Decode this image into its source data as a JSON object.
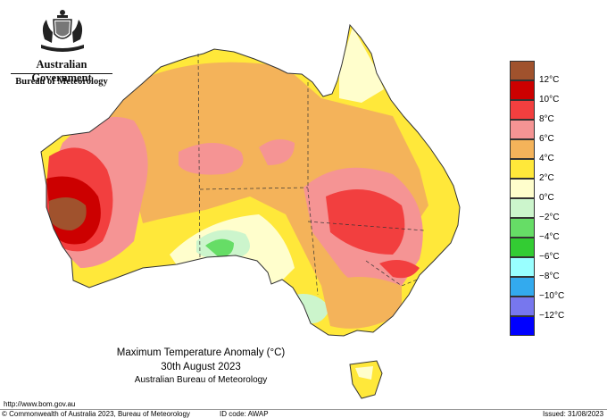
{
  "header": {
    "gov_name": "Australian Government",
    "bureau_name": "Bureau of Meteorology",
    "crest_icon": "coat-of-arms-icon"
  },
  "map": {
    "title": "Maximum Temperature Anomaly (°C)",
    "date": "30th August 2023",
    "source": "Australian Bureau of Meteorology"
  },
  "legend": {
    "swatches": [
      {
        "color": "#a0522d",
        "label": "12°C"
      },
      {
        "color": "#cc0000",
        "label": "10°C"
      },
      {
        "color": "#f23f3f",
        "label": "8°C"
      },
      {
        "color": "#f59494",
        "label": "6°C"
      },
      {
        "color": "#f4b35a",
        "label": "4°C"
      },
      {
        "color": "#ffe83a",
        "label": "2°C"
      },
      {
        "color": "#fffecc",
        "label": "0°C"
      },
      {
        "color": "#ccf5cc",
        "label": "−2°C"
      },
      {
        "color": "#66dd66",
        "label": "−4°C"
      },
      {
        "color": "#33cc33",
        "label": "−6°C"
      },
      {
        "color": "#99ffff",
        "label": "−8°C"
      },
      {
        "color": "#33aaee",
        "label": "−10°C"
      },
      {
        "color": "#7777ee",
        "label": "−12°C"
      },
      {
        "color": "#0000ff",
        "label": ""
      }
    ]
  },
  "footer": {
    "url": "http://www.bom.gov.au",
    "copyright": "© Commonwealth of Australia 2023, Bureau of Meteorology",
    "id_code": "ID code: AWAP",
    "issued": "Issued: 31/08/2023"
  }
}
